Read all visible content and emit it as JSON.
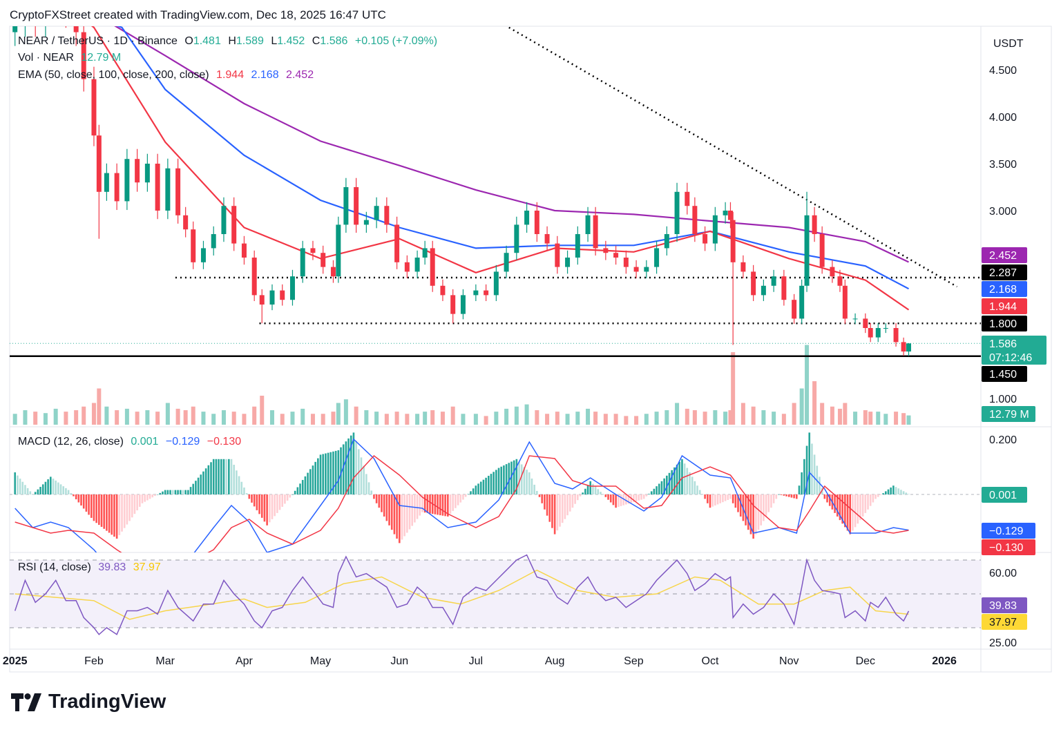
{
  "header": {
    "text": "CryptoFXStreet created with TradingView.com, Dec 18, 2025 16:47 UTC"
  },
  "legend": {
    "symbol": "NEAR / TetherUS · 1D · Binance",
    "o_label": "O",
    "o": "1.481",
    "h_label": "H",
    "h": "1.589",
    "l_label": "L",
    "l": "1.452",
    "c_label": "C",
    "c": "1.586",
    "change": "+0.105 (+7.09%)",
    "vol_label": "Vol · NEAR",
    "vol": "12.79 M",
    "ema_label": "EMA (50, close, 100, close, 200, close)",
    "ema50": "1.944",
    "ema100": "2.168",
    "ema200": "2.452",
    "macd_label": "MACD (12, 26, close)",
    "macd_hist": "0.001",
    "macd_line": "−0.129",
    "macd_signal": "−0.130",
    "rsi_label": "RSI (14, close)",
    "rsi": "39.83",
    "rsi_ma": "37.97"
  },
  "colors": {
    "up": "#089981",
    "down": "#f23645",
    "ema50": "#f23645",
    "ema100": "#2962ff",
    "ema200": "#9c27b0",
    "macd": "#2962ff",
    "signal": "#f23645",
    "rsi": "#7e57c2",
    "rsi_ma": "#f7c600",
    "teal": "#22ab94"
  },
  "axis": {
    "currency": "USDT",
    "price_ticks": [
      "4.500",
      "4.000",
      "3.500",
      "3.000",
      "1.000"
    ],
    "macd_ticks": [
      "0.200"
    ],
    "rsi_ticks": [
      "60.00",
      "25.00"
    ],
    "time_ticks": [
      {
        "label": "2025",
        "date": "2025-01-01",
        "bold": true
      },
      {
        "label": "Feb",
        "date": "2025-02-01"
      },
      {
        "label": "Mar",
        "date": "2025-03-01"
      },
      {
        "label": "Apr",
        "date": "2025-04-01"
      },
      {
        "label": "May",
        "date": "2025-05-01"
      },
      {
        "label": "Jun",
        "date": "2025-06-01"
      },
      {
        "label": "Jul",
        "date": "2025-07-01"
      },
      {
        "label": "Aug",
        "date": "2025-08-01"
      },
      {
        "label": "Sep",
        "date": "2025-09-01"
      },
      {
        "label": "Oct",
        "date": "2025-10-01"
      },
      {
        "label": "Nov",
        "date": "2025-11-01"
      },
      {
        "label": "Dec",
        "date": "2025-12-01"
      },
      {
        "label": "2026",
        "date": "2026-01-01",
        "bold": true
      }
    ]
  },
  "badges": [
    {
      "text": "2.452",
      "value": 2.452,
      "bg": "#9c27b0",
      "fg": "#ffffff"
    },
    {
      "text": "2.287",
      "value": 2.287,
      "bg": "#000000",
      "fg": "#ffffff"
    },
    {
      "text": "2.168",
      "value": 2.168,
      "bg": "#2962ff",
      "fg": "#ffffff"
    },
    {
      "text": "1.944",
      "value": 1.944,
      "bg": "#f23645",
      "fg": "#ffffff"
    },
    {
      "text": "1.800",
      "value": 1.8,
      "bg": "#000000",
      "fg": "#ffffff"
    },
    {
      "text": "1.586",
      "sub": "07:12:46",
      "value": 1.586,
      "bg": "#22ab94",
      "fg": "#ffffff"
    },
    {
      "text": "1.450",
      "value": 1.45,
      "bg": "#000000",
      "fg": "#ffffff"
    },
    {
      "text": "12.79 M",
      "bg": "#22ab94",
      "fg": "#ffffff"
    },
    {
      "text": "0.001",
      "bg": "#22ab94",
      "fg": "#ffffff"
    },
    {
      "text": "−0.129",
      "bg": "#2962ff",
      "fg": "#ffffff"
    },
    {
      "text": "−0.130",
      "bg": "#f23645",
      "fg": "#ffffff"
    },
    {
      "text": "39.83",
      "bg": "#7e57c2",
      "fg": "#ffffff"
    },
    {
      "text": "37.97",
      "bg": "#fdd835",
      "fg": "#131722"
    }
  ],
  "brand": "TradingView",
  "chart_data": {
    "type": "candlestick",
    "title": "NEAR / TetherUS · 1D · Binance",
    "ylim": [
      0.9,
      5.0
    ],
    "levels": [
      {
        "value": 2.287,
        "style": "dotted",
        "from": "2025-03-05"
      },
      {
        "value": 1.8,
        "style": "dotted",
        "from": "2025-04-07"
      },
      {
        "value": 1.45,
        "style": "solid"
      },
      {
        "value": 1.586,
        "style": "dotted-teal"
      }
    ],
    "trendline": [
      {
        "date": "2025-07-14",
        "price": 4.95
      },
      {
        "date": "2026-01-06",
        "price": 2.19
      }
    ],
    "candles": [
      [
        "2025-01-01",
        5.0,
        15,
        40
      ],
      [
        "2025-01-05",
        5.3,
        20,
        58
      ],
      [
        "2025-01-09",
        5.0,
        18,
        45
      ],
      [
        "2025-01-13",
        5.2,
        16,
        50
      ],
      [
        "2025-01-17",
        5.4,
        22,
        58
      ],
      [
        "2025-01-21",
        5.1,
        18,
        46
      ],
      [
        "2025-01-25",
        4.9,
        20,
        46
      ],
      [
        "2025-01-28",
        4.4,
        25,
        36
      ],
      [
        "2025-02-01",
        3.8,
        30,
        30
      ],
      [
        "2025-02-03",
        3.2,
        50,
        26,
        2.7
      ],
      [
        "2025-02-06",
        3.4,
        25,
        30
      ],
      [
        "2025-02-10",
        3.1,
        20,
        26
      ],
      [
        "2025-02-14",
        3.55,
        22,
        40
      ],
      [
        "2025-02-18",
        3.3,
        18,
        40
      ],
      [
        "2025-02-22",
        3.5,
        20,
        42
      ],
      [
        "2025-02-26",
        3.0,
        18,
        38
      ],
      [
        "2025-03-02",
        3.45,
        30,
        52
      ],
      [
        "2025-03-06",
        2.95,
        22,
        42
      ],
      [
        "2025-03-09",
        2.8,
        20,
        38
      ],
      [
        "2025-03-12",
        2.45,
        25,
        34
      ],
      [
        "2025-03-16",
        2.6,
        18,
        44
      ],
      [
        "2025-03-20",
        2.75,
        15,
        44
      ],
      [
        "2025-03-24",
        3.05,
        20,
        58
      ],
      [
        "2025-03-28",
        2.65,
        18,
        50
      ],
      [
        "2025-04-01",
        2.5,
        15,
        44
      ],
      [
        "2025-04-05",
        2.1,
        25,
        34
      ],
      [
        "2025-04-08",
        2.0,
        40,
        30,
        1.8
      ],
      [
        "2025-04-12",
        2.15,
        20,
        40
      ],
      [
        "2025-04-16",
        2.05,
        15,
        42
      ],
      [
        "2025-04-20",
        2.3,
        18,
        52
      ],
      [
        "2025-04-24",
        2.6,
        22,
        60
      ],
      [
        "2025-04-28",
        2.55,
        15,
        52
      ],
      [
        "2025-05-02",
        2.4,
        15,
        44
      ],
      [
        "2025-05-06",
        2.3,
        18,
        42
      ],
      [
        "2025-05-08",
        2.85,
        30,
        62
      ],
      [
        "2025-05-11",
        3.25,
        35,
        72
      ],
      [
        "2025-05-15",
        2.85,
        25,
        60
      ],
      [
        "2025-05-19",
        2.9,
        20,
        62
      ],
      [
        "2025-05-23",
        3.05,
        18,
        58
      ],
      [
        "2025-05-27",
        2.85,
        15,
        54
      ],
      [
        "2025-05-31",
        2.45,
        18,
        42
      ],
      [
        "2025-06-04",
        2.35,
        15,
        44
      ],
      [
        "2025-06-08",
        2.5,
        15,
        54
      ],
      [
        "2025-06-11",
        2.6,
        18,
        50
      ],
      [
        "2025-06-14",
        2.2,
        20,
        42
      ],
      [
        "2025-06-18",
        2.1,
        18,
        42
      ],
      [
        "2025-06-22",
        1.9,
        25,
        32,
        1.8
      ],
      [
        "2025-06-26",
        2.1,
        15,
        48
      ],
      [
        "2025-07-01",
        2.15,
        15,
        54
      ],
      [
        "2025-07-05",
        2.1,
        12,
        52
      ],
      [
        "2025-07-09",
        2.35,
        18,
        58
      ],
      [
        "2025-07-13",
        2.55,
        22,
        64
      ],
      [
        "2025-07-17",
        2.85,
        25,
        70
      ],
      [
        "2025-07-21",
        3.0,
        28,
        73
      ],
      [
        "2025-07-25",
        2.75,
        20,
        60
      ],
      [
        "2025-07-29",
        2.65,
        15,
        58
      ],
      [
        "2025-08-02",
        2.4,
        18,
        48
      ],
      [
        "2025-08-06",
        2.5,
        15,
        44
      ],
      [
        "2025-08-10",
        2.75,
        18,
        54
      ],
      [
        "2025-08-14",
        2.95,
        22,
        60
      ],
      [
        "2025-08-17",
        2.6,
        18,
        52
      ],
      [
        "2025-08-21",
        2.55,
        15,
        46
      ],
      [
        "2025-08-25",
        2.5,
        15,
        48
      ],
      [
        "2025-08-29",
        2.4,
        12,
        42
      ],
      [
        "2025-09-02",
        2.35,
        12,
        46
      ],
      [
        "2025-09-06",
        2.4,
        15,
        50
      ],
      [
        "2025-09-10",
        2.6,
        18,
        58
      ],
      [
        "2025-09-14",
        2.75,
        20,
        64
      ],
      [
        "2025-09-18",
        3.2,
        30,
        70
      ],
      [
        "2025-09-22",
        3.05,
        22,
        62
      ],
      [
        "2025-09-25",
        2.75,
        20,
        52
      ],
      [
        "2025-09-29",
        2.65,
        18,
        56
      ],
      [
        "2025-10-03",
        2.95,
        20,
        62
      ],
      [
        "2025-10-07",
        3.0,
        18,
        58
      ],
      [
        "2025-10-09",
        2.9,
        20,
        60
      ],
      [
        "2025-10-10",
        2.45,
        100,
        36,
        1.57
      ],
      [
        "2025-10-14",
        2.35,
        30,
        44
      ],
      [
        "2025-10-18",
        2.1,
        25,
        38
      ],
      [
        "2025-10-22",
        2.2,
        20,
        42
      ],
      [
        "2025-10-26",
        2.3,
        18,
        50
      ],
      [
        "2025-10-30",
        2.05,
        15,
        44
      ],
      [
        "2025-11-03",
        1.85,
        30,
        32
      ],
      [
        "2025-11-06",
        2.2,
        50,
        54
      ],
      [
        "2025-11-08",
        2.95,
        110,
        70,
        null,
        3.2
      ],
      [
        "2025-11-11",
        2.75,
        60,
        58
      ],
      [
        "2025-11-14",
        2.4,
        30,
        52
      ],
      [
        "2025-11-18",
        2.3,
        25,
        51
      ],
      [
        "2025-11-21",
        2.2,
        22,
        50
      ],
      [
        "2025-11-23",
        1.85,
        30,
        36
      ],
      [
        "2025-11-27",
        1.85,
        18,
        40
      ],
      [
        "2025-12-01",
        1.75,
        20,
        34
      ],
      [
        "2025-12-03",
        1.65,
        18,
        45
      ],
      [
        "2025-12-06",
        1.75,
        18,
        42
      ],
      [
        "2025-12-09",
        1.75,
        15,
        48
      ],
      [
        "2025-12-13",
        1.6,
        18,
        38
      ],
      [
        "2025-12-16",
        1.5,
        16,
        34
      ],
      [
        "2025-12-18",
        1.586,
        12.79,
        39.83,
        1.452,
        1.589
      ]
    ],
    "candle_fields": [
      "date",
      "close",
      "volume_m",
      "rsi",
      "low",
      "high"
    ],
    "ema": {
      "ema50": [
        [
          "2025-01-01",
          5.5
        ],
        [
          "2025-01-20",
          5.2
        ],
        [
          "2025-02-01",
          4.95
        ],
        [
          "2025-03-01",
          3.73
        ],
        [
          "2025-04-01",
          2.82
        ],
        [
          "2025-05-01",
          2.49
        ],
        [
          "2025-06-01",
          2.7
        ],
        [
          "2025-07-01",
          2.34
        ],
        [
          "2025-08-01",
          2.6
        ],
        [
          "2025-09-01",
          2.56
        ],
        [
          "2025-10-01",
          2.78
        ],
        [
          "2025-11-01",
          2.49
        ],
        [
          "2025-12-01",
          2.26
        ],
        [
          "2025-12-18",
          1.944
        ]
      ],
      "ema100": [
        [
          "2025-01-01",
          5.4
        ],
        [
          "2025-02-12",
          4.95
        ],
        [
          "2025-03-01",
          4.29
        ],
        [
          "2025-04-01",
          3.59
        ],
        [
          "2025-05-01",
          3.11
        ],
        [
          "2025-06-01",
          2.82
        ],
        [
          "2025-07-01",
          2.6
        ],
        [
          "2025-08-01",
          2.63
        ],
        [
          "2025-09-01",
          2.63
        ],
        [
          "2025-10-01",
          2.78
        ],
        [
          "2025-11-01",
          2.56
        ],
        [
          "2025-12-01",
          2.41
        ],
        [
          "2025-12-18",
          2.168
        ]
      ],
      "ema200": [
        [
          "2025-01-01",
          5.6
        ],
        [
          "2025-02-01",
          5.1
        ],
        [
          "2025-03-01",
          4.65
        ],
        [
          "2025-04-01",
          4.14
        ],
        [
          "2025-05-01",
          3.74
        ],
        [
          "2025-06-01",
          3.48
        ],
        [
          "2025-07-01",
          3.22
        ],
        [
          "2025-08-01",
          3.0
        ],
        [
          "2025-09-01",
          2.96
        ],
        [
          "2025-10-01",
          2.89
        ],
        [
          "2025-11-01",
          2.82
        ],
        [
          "2025-12-01",
          2.67
        ],
        [
          "2025-12-18",
          2.452
        ]
      ]
    },
    "macd": [
      [
        "2025-01-01",
        -0.05,
        -0.1
      ],
      [
        "2025-01-08",
        -0.12,
        -0.12
      ],
      [
        "2025-01-15",
        -0.1,
        -0.14
      ],
      [
        "2025-01-22",
        -0.12,
        -0.13
      ],
      [
        "2025-02-01",
        -0.2,
        -0.14
      ],
      [
        "2025-02-10",
        -0.3,
        -0.2
      ],
      [
        "2025-02-20",
        -0.28,
        -0.26
      ],
      [
        "2025-03-01",
        -0.25,
        -0.26
      ],
      [
        "2025-03-10",
        -0.24,
        -0.25
      ],
      [
        "2025-03-20",
        -0.12,
        -0.2
      ],
      [
        "2025-03-27",
        -0.04,
        -0.12
      ],
      [
        "2025-04-03",
        -0.1,
        -0.09
      ],
      [
        "2025-04-10",
        -0.21,
        -0.14
      ],
      [
        "2025-04-20",
        -0.18,
        -0.18
      ],
      [
        "2025-05-01",
        -0.04,
        -0.13
      ],
      [
        "2025-05-08",
        0.05,
        -0.05
      ],
      [
        "2025-05-14",
        0.2,
        0.06
      ],
      [
        "2025-05-22",
        0.13,
        0.14
      ],
      [
        "2025-06-01",
        -0.04,
        0.07
      ],
      [
        "2025-06-10",
        -0.05,
        -0.01
      ],
      [
        "2025-06-20",
        -0.12,
        -0.07
      ],
      [
        "2025-07-01",
        -0.1,
        -0.12
      ],
      [
        "2025-07-10",
        -0.02,
        -0.08
      ],
      [
        "2025-07-17",
        0.1,
        0.02
      ],
      [
        "2025-07-22",
        0.19,
        0.14
      ],
      [
        "2025-08-01",
        0.04,
        0.13
      ],
      [
        "2025-08-08",
        0.02,
        0.05
      ],
      [
        "2025-08-15",
        0.06,
        0.03
      ],
      [
        "2025-08-25",
        0.0,
        0.03
      ],
      [
        "2025-09-05",
        -0.06,
        -0.05
      ],
      [
        "2025-09-12",
        -0.01,
        -0.04
      ],
      [
        "2025-09-20",
        0.14,
        0.06
      ],
      [
        "2025-10-01",
        0.07,
        0.1
      ],
      [
        "2025-10-09",
        0.06,
        0.07
      ],
      [
        "2025-10-18",
        -0.14,
        -0.04
      ],
      [
        "2025-10-28",
        -0.12,
        -0.12
      ],
      [
        "2025-11-04",
        -0.14,
        -0.13
      ],
      [
        "2025-11-09",
        0.08,
        -0.06
      ],
      [
        "2025-11-15",
        0.02,
        0.03
      ],
      [
        "2025-11-25",
        -0.14,
        -0.05
      ],
      [
        "2025-12-05",
        -0.14,
        -0.13
      ],
      [
        "2025-12-12",
        -0.12,
        -0.14
      ],
      [
        "2025-12-18",
        -0.129,
        -0.13
      ]
    ],
    "macd_fields": [
      "date",
      "macd",
      "signal"
    ],
    "rsi_levels": [
      70,
      50,
      30
    ],
    "rsi_ma": [
      [
        "2025-01-01",
        50
      ],
      [
        "2025-02-01",
        46
      ],
      [
        "2025-02-15",
        35
      ],
      [
        "2025-03-01",
        40
      ],
      [
        "2025-03-15",
        43
      ],
      [
        "2025-04-01",
        47
      ],
      [
        "2025-04-10",
        42
      ],
      [
        "2025-04-25",
        45
      ],
      [
        "2025-05-10",
        56
      ],
      [
        "2025-05-25",
        60
      ],
      [
        "2025-06-10",
        48
      ],
      [
        "2025-06-25",
        44
      ],
      [
        "2025-07-10",
        52
      ],
      [
        "2025-07-25",
        64
      ],
      [
        "2025-08-10",
        52
      ],
      [
        "2025-08-25",
        48
      ],
      [
        "2025-09-10",
        50
      ],
      [
        "2025-09-25",
        60
      ],
      [
        "2025-10-05",
        58
      ],
      [
        "2025-10-20",
        44
      ],
      [
        "2025-11-03",
        44
      ],
      [
        "2025-11-15",
        52
      ],
      [
        "2025-11-25",
        54
      ],
      [
        "2025-12-05",
        40
      ],
      [
        "2025-12-18",
        37.97
      ]
    ]
  }
}
